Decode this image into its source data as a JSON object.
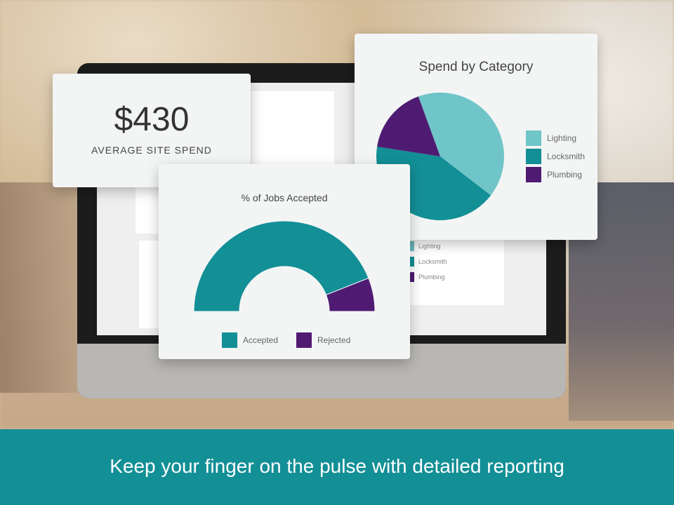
{
  "average_card": {
    "value": "$430",
    "label": "AVERAGE SITE SPEND"
  },
  "chart_data": [
    {
      "type": "pie",
      "title": "Spend by Category",
      "categories": [
        "Lighting",
        "Locksmith",
        "Plumbing"
      ],
      "values": [
        41,
        42,
        17
      ],
      "colors": [
        "#6fc5c7",
        "#138f96",
        "#4f1b72"
      ],
      "legend": "right"
    },
    {
      "type": "pie",
      "subtype": "half-donut",
      "title": "% of Jobs Accepted",
      "categories": [
        "Accepted",
        "Rejected"
      ],
      "values": [
        88,
        12
      ],
      "colors": [
        "#138f96",
        "#4f1b72"
      ],
      "legend": "bottom"
    }
  ],
  "background_legend": [
    "Lighting",
    "Locksmith",
    "Plumbing"
  ],
  "footer": {
    "tagline": "Keep your finger on the pulse with detailed reporting"
  }
}
